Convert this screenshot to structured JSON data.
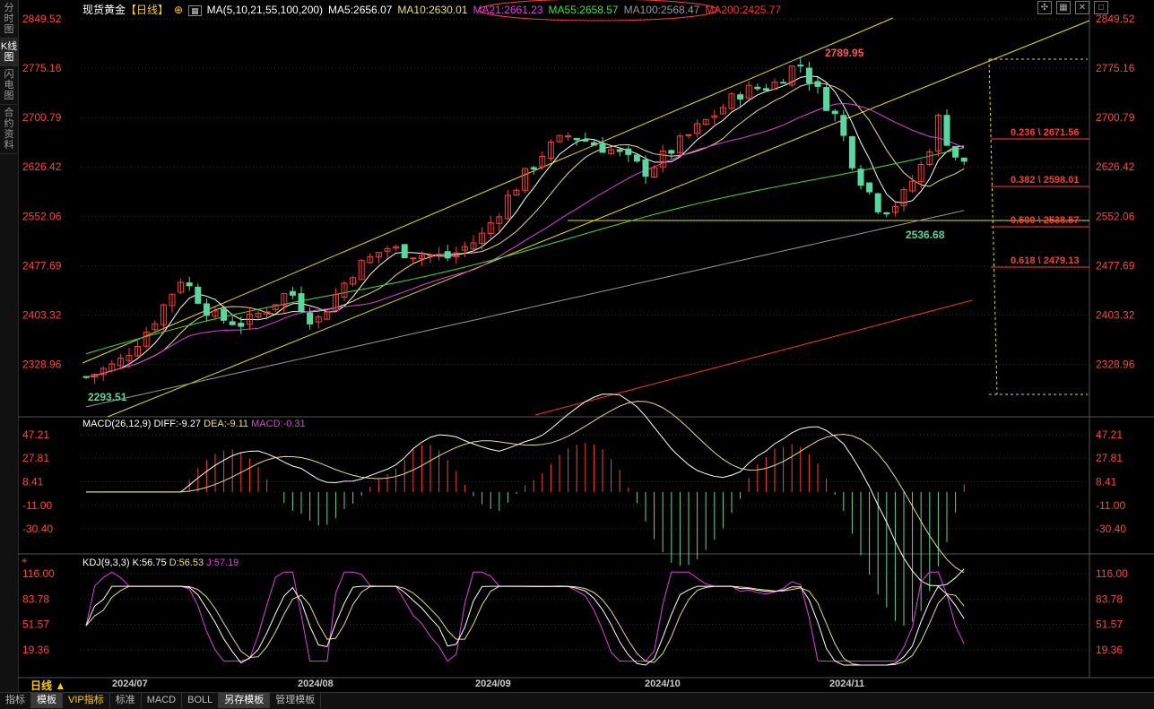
{
  "sidebar": {
    "tabs": [
      {
        "label": "分时图",
        "active": false
      },
      {
        "label": "K线图",
        "active": true
      },
      {
        "label": "闪电图",
        "active": false
      },
      {
        "label": "合约资料",
        "active": false
      }
    ]
  },
  "header": {
    "title": "现货黄金",
    "period": "【日线】",
    "ma_params": "MA(5,10,21,55,100,200)",
    "ma5": "MA5:2656.07",
    "ma10": "MA10:2630.01",
    "ma21": "MA21:2661.23",
    "ma55": "MA55:2658.57",
    "ma100": "MA100:2568.47",
    "ma200": "MA200:2425.77"
  },
  "macd_header": {
    "label": "MACD(26,12,9)",
    "diff": "DIFF:-9.27",
    "dea": "DEA:-9.11",
    "macd": "MACD:-0.31"
  },
  "kdj_header": {
    "label": "KDJ(9,3,3)",
    "k": "K:56.75",
    "d": "D:56.53",
    "j": "J:57.19"
  },
  "price_axis": [
    "2849.52",
    "2775.16",
    "2700.79",
    "2626.42",
    "2552.06",
    "2477.69",
    "2403.32",
    "2328.96"
  ],
  "macd_axis": [
    "47.21",
    "27.81",
    "8.41",
    "-11.00",
    "-30.40"
  ],
  "kdj_axis": [
    "116.00",
    "83.78",
    "51.57",
    "19.36"
  ],
  "date_labels": [
    "2024/07",
    "2024/08",
    "2024/09",
    "2024/10",
    "2024/11"
  ],
  "annotations": {
    "high": "2789.95",
    "low1": "2293.51",
    "low2": "2536.68"
  },
  "fib": [
    "0.236 \\ 2671.56",
    "0.382 \\ 2598.01",
    "0.500 \\ 2538.57",
    "0.618 \\ 2479.13"
  ],
  "status": {
    "period": "日线 ▲"
  },
  "bottom_tabs": [
    {
      "label": "指标",
      "active": false
    },
    {
      "label": "模板",
      "active": true
    },
    {
      "label": "VIP指标",
      "active": false
    },
    {
      "label": "标准",
      "active": false
    },
    {
      "label": "MACD",
      "active": false
    },
    {
      "label": "BOLL",
      "active": false
    },
    {
      "label": "另存模板",
      "active": true
    },
    {
      "label": "管理模板",
      "active": false
    }
  ],
  "colors": {
    "up": "#ff3b3b",
    "down": "#5bd6a0",
    "ma5": "#ffffff",
    "ma10": "#e8e07a",
    "ma21": "#e040e0",
    "ma55": "#44dd44",
    "ma100": "#999999",
    "ma200": "#ff3333",
    "axis": "#ff4444"
  }
}
